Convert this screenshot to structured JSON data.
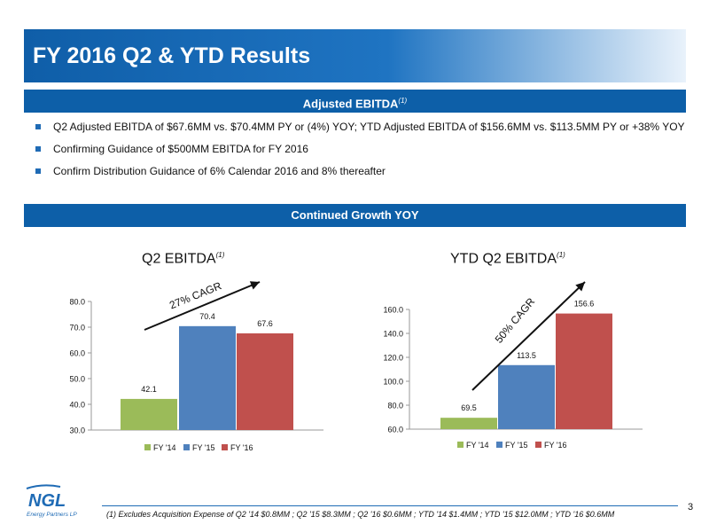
{
  "title": "FY 2016 Q2 & YTD Results",
  "section1": {
    "heading": "Adjusted EBITDA",
    "heading_note": "(1)"
  },
  "bullets": [
    "Q2 Adjusted EBITDA of $67.6MM vs. $70.4MM PY or (4%) YOY; YTD Adjusted EBITDA of $156.6MM vs. $113.5MM PY or +38% YOY",
    "Confirming Guidance of $500MM EBITDA for FY 2016",
    "Confirm Distribution Guidance of 6% Calendar 2016 and 8% thereafter"
  ],
  "section2": {
    "heading": "Continued Growth YOY"
  },
  "colors": {
    "accent": "#0d5fa8",
    "fy14": "#9bbb59",
    "fy15": "#4f81bd",
    "fy16": "#c0504d"
  },
  "chart_data": [
    {
      "type": "bar",
      "title": "Q2 EBITDA",
      "title_note": "(1)",
      "categories": [
        "FY '14",
        "FY '15",
        "FY '16"
      ],
      "values": [
        42.1,
        70.4,
        67.6
      ],
      "value_labels": [
        "42.1",
        "70.4",
        "67.6"
      ],
      "ylim": [
        30,
        80
      ],
      "yticks": [
        "30.0",
        "40.0",
        "50.0",
        "60.0",
        "70.0",
        "80.0"
      ],
      "annotation": "27% CAGR",
      "legend_position": "bottom"
    },
    {
      "type": "bar",
      "title": "YTD Q2 EBITDA",
      "title_note": "(1)",
      "categories": [
        "FY '14",
        "FY '15",
        "FY '16"
      ],
      "values": [
        69.5,
        113.5,
        156.6
      ],
      "value_labels": [
        "69.5",
        "113.5",
        "156.6"
      ],
      "ylim": [
        60,
        160
      ],
      "yticks": [
        "60.0",
        "80.0",
        "100.0",
        "120.0",
        "140.0",
        "160.0"
      ],
      "annotation": "50% CAGR",
      "legend_position": "bottom"
    }
  ],
  "logo": {
    "text": "NGL",
    "subtext": "Energy Partners LP"
  },
  "footnote": "(1) Excludes Acquisition Expense of Q2 '14 $0.8MM ; Q2 '15 $8.3MM ; Q2 '16 $0.6MM ; YTD '14 $1.4MM ; YTD '15 $12.0MM ; YTD '16 $0.6MM",
  "page_number": "3"
}
